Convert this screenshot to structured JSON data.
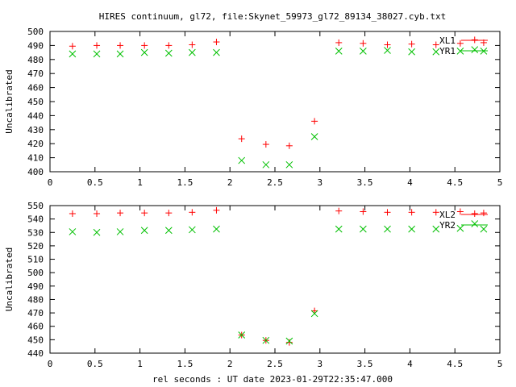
{
  "chart_data": {
    "type": "scatter",
    "title": "HIRES continuum, gl72, file:Skynet_59973_gl72_89134_38027.cyb.txt",
    "xlabel": "rel seconds : UT date 2023-01-29T22:35:47.000",
    "colors": {
      "X": "#ff0000",
      "Y": "#00c000"
    },
    "panels": [
      {
        "ylabel": "Uncalibrated",
        "xlim": [
          0,
          5
        ],
        "ylim": [
          400,
          500
        ],
        "xticks": [
          "0",
          "0.5",
          "1",
          "1.5",
          "2",
          "2.5",
          "3",
          "3.5",
          "4",
          "4.5",
          "5"
        ],
        "yticks": [
          "400",
          "410",
          "420",
          "430",
          "440",
          "450",
          "460",
          "470",
          "480",
          "490",
          "500"
        ],
        "legend_position": "top-right",
        "series": [
          {
            "name": "XL1",
            "marker": "plus",
            "color": "#ff0000",
            "x": [
              0.25,
              0.52,
              0.78,
              1.05,
              1.32,
              1.58,
              1.85,
              2.13,
              2.4,
              2.66,
              2.94,
              3.21,
              3.48,
              3.75,
              4.02,
              4.29,
              4.56,
              4.72,
              4.82
            ],
            "y": [
              489.5,
              490,
              490,
              490,
              490,
              490.5,
              492.5,
              423.5,
              419.5,
              418.5,
              436,
              492,
              491.5,
              490.5,
              491,
              490.5,
              491.5,
              494,
              492
            ]
          },
          {
            "name": "YR1",
            "marker": "cross",
            "color": "#00c000",
            "x": [
              0.25,
              0.52,
              0.78,
              1.05,
              1.32,
              1.58,
              1.85,
              2.13,
              2.4,
              2.66,
              2.94,
              3.21,
              3.48,
              3.75,
              4.02,
              4.29,
              4.56,
              4.72,
              4.82
            ],
            "y": [
              484,
              484,
              484,
              485,
              484.5,
              485,
              485,
              408,
              405,
              405,
              425,
              486,
              486,
              486.5,
              485.5,
              485.5,
              486,
              487,
              486
            ]
          }
        ]
      },
      {
        "ylabel": "Uncalibrated",
        "xlim": [
          0,
          5
        ],
        "ylim": [
          440,
          550
        ],
        "xticks": [
          "0",
          "0.5",
          "1",
          "1.5",
          "2",
          "2.5",
          "3",
          "3.5",
          "4",
          "4.5",
          "5"
        ],
        "yticks": [
          "440",
          "450",
          "460",
          "470",
          "480",
          "490",
          "500",
          "510",
          "520",
          "530",
          "540",
          "550"
        ],
        "legend_position": "top-right",
        "series": [
          {
            "name": "XL2",
            "marker": "plus",
            "color": "#ff0000",
            "x": [
              0.25,
              0.52,
              0.78,
              1.05,
              1.32,
              1.58,
              1.85,
              2.13,
              2.4,
              2.66,
              2.94,
              3.21,
              3.48,
              3.75,
              4.02,
              4.29,
              4.56,
              4.72,
              4.82
            ],
            "y": [
              544,
              544,
              544.5,
              544.5,
              544.5,
              545,
              546.5,
              453.5,
              449.5,
              448,
              471.5,
              546,
              545.5,
              545,
              545,
              545,
              545.5,
              544,
              544.5
            ]
          },
          {
            "name": "YR2",
            "marker": "cross",
            "color": "#00c000",
            "x": [
              0.25,
              0.52,
              0.78,
              1.05,
              1.32,
              1.58,
              1.85,
              2.13,
              2.4,
              2.66,
              2.94,
              3.21,
              3.48,
              3.75,
              4.02,
              4.29,
              4.56,
              4.72,
              4.82
            ],
            "y": [
              530.5,
              530,
              530.5,
              531.5,
              531.5,
              532,
              532.5,
              453.5,
              449.5,
              449,
              469.5,
              532.5,
              532.5,
              532.5,
              532.5,
              532.5,
              533,
              536.5,
              532.5
            ]
          }
        ]
      }
    ]
  }
}
